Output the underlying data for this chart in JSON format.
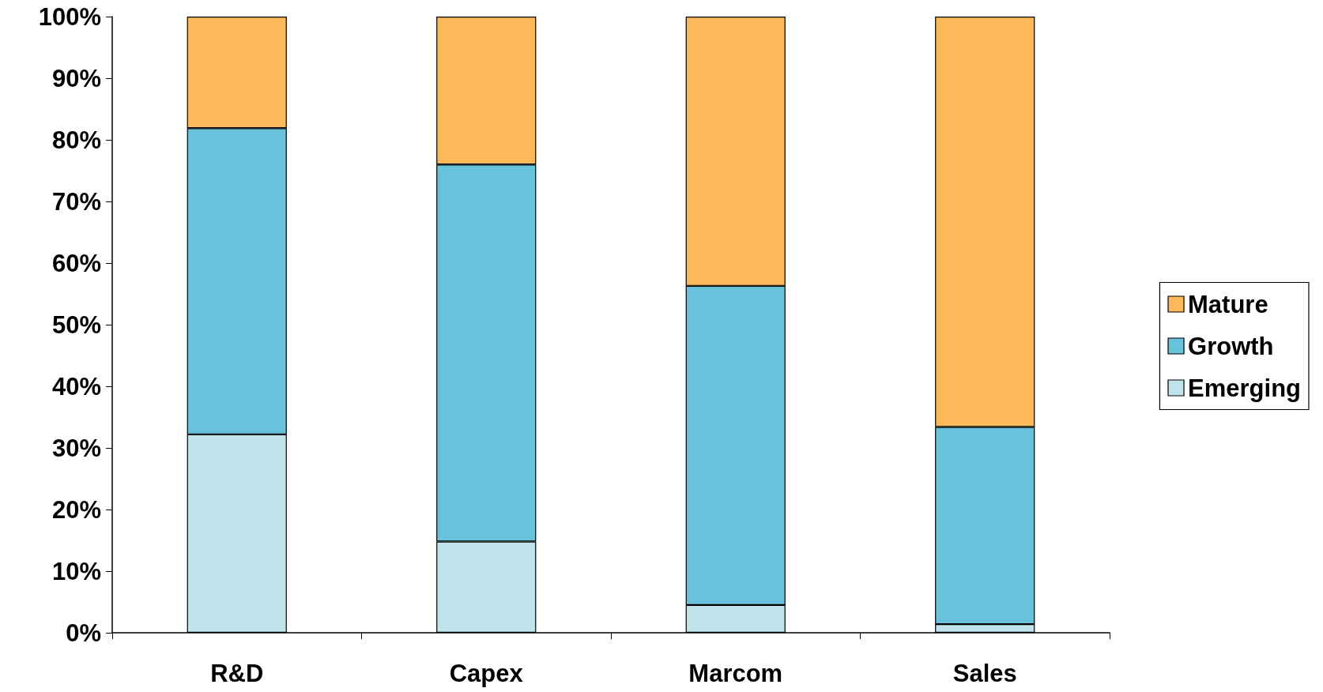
{
  "chart_data": {
    "type": "bar",
    "stacked": true,
    "categories": [
      "R&D",
      "Capex",
      "Marcom",
      "Sales"
    ],
    "series": [
      {
        "name": "Emerging",
        "color": "#c0e3ec",
        "values": [
          32.2,
          14.8,
          4.5,
          1.4
        ]
      },
      {
        "name": "Growth",
        "color": "#69c2dc",
        "values": [
          49.7,
          61.2,
          51.8,
          32.0
        ]
      },
      {
        "name": "Mature",
        "color": "#fdb85a",
        "values": [
          18.1,
          24.0,
          43.7,
          66.6
        ]
      }
    ],
    "ylim": [
      0,
      100
    ],
    "yticks": [
      {
        "value": 0,
        "label": "0%"
      },
      {
        "value": 10,
        "label": "10%"
      },
      {
        "value": 20,
        "label": "20%"
      },
      {
        "value": 30,
        "label": "30%"
      },
      {
        "value": 40,
        "label": "40%"
      },
      {
        "value": 50,
        "label": "50%"
      },
      {
        "value": 60,
        "label": "60%"
      },
      {
        "value": 70,
        "label": "70%"
      },
      {
        "value": 80,
        "label": "80%"
      },
      {
        "value": 90,
        "label": "90%"
      },
      {
        "value": 100,
        "label": "100%"
      }
    ],
    "grid": false,
    "legend": "right"
  }
}
